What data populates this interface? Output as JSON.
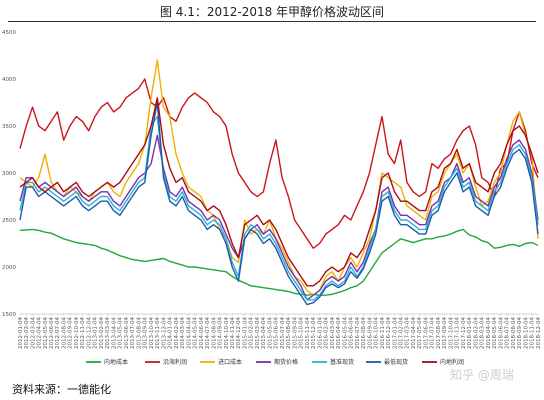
{
  "header": {
    "title": "图 4.1：2012-2018 年甲醇价格波动区间"
  },
  "footer": {
    "source": "资料来源：一德能化",
    "watermark": "知乎 @周瑞"
  },
  "chart_data": {
    "type": "line",
    "title": "图 4.1：2012-2018 年甲醇价格波动区间",
    "ylim": [
      1500,
      4500
    ],
    "yticks": [
      1500,
      2000,
      2500,
      3000,
      3500,
      4000,
      4500
    ],
    "grid": false,
    "legend_position": "bottom",
    "x": [
      "2012-01-04",
      "2012-02-04",
      "2012-03-04",
      "2012-04-04",
      "2012-05-04",
      "2012-06-04",
      "2012-07-04",
      "2012-08-04",
      "2012-09-04",
      "2012-10-04",
      "2012-11-04",
      "2012-12-04",
      "2013-01-04",
      "2013-02-04",
      "2013-03-04",
      "2013-04-04",
      "2013-05-04",
      "2013-06-04",
      "2013-07-04",
      "2013-08-04",
      "2013-09-04",
      "2013-10-04",
      "2013-11-04",
      "2013-12-04",
      "2014-01-04",
      "2014-02-04",
      "2014-03-04",
      "2014-04-04",
      "2014-05-04",
      "2014-06-04",
      "2014-07-04",
      "2014-08-04",
      "2014-09-04",
      "2014-10-04",
      "2014-11-04",
      "2014-12-04",
      "2015-01-04",
      "2015-02-04",
      "2015-03-04",
      "2015-04-04",
      "2015-05-04",
      "2015-06-04",
      "2015-07-04",
      "2015-08-04",
      "2015-09-04",
      "2015-10-04",
      "2015-11-04",
      "2015-12-04",
      "2016-01-04",
      "2016-02-04",
      "2016-03-04",
      "2016-04-04",
      "2016-05-04",
      "2016-06-04",
      "2016-07-04",
      "2016-08-04",
      "2016-09-04",
      "2016-10-04",
      "2016-11-04",
      "2016-12-04",
      "2017-01-04",
      "2017-02-04",
      "2017-03-04",
      "2017-04-04",
      "2017-05-04",
      "2017-06-04",
      "2017-07-04",
      "2017-08-04",
      "2017-09-04",
      "2017-10-04",
      "2017-11-04",
      "2017-12-04",
      "2018-01-04",
      "2018-02-04",
      "2018-03-04",
      "2018-04-04",
      "2018-05-04",
      "2018-06-04",
      "2018-07-04",
      "2018-08-04",
      "2018-09-04",
      "2018-10-04",
      "2018-11-04",
      "2018-12-04"
    ],
    "series": [
      {
        "name": "内地成本",
        "color": "#22a838",
        "values": [
          2390,
          2395,
          2400,
          2390,
          2370,
          2360,
          2330,
          2300,
          2280,
          2260,
          2250,
          2240,
          2230,
          2200,
          2180,
          2150,
          2120,
          2100,
          2080,
          2070,
          2060,
          2070,
          2080,
          2090,
          2060,
          2040,
          2020,
          2000,
          2000,
          1990,
          1980,
          1970,
          1960,
          1950,
          1900,
          1860,
          1830,
          1800,
          1790,
          1780,
          1770,
          1760,
          1750,
          1740,
          1720,
          1710,
          1700,
          1710,
          1700,
          1700,
          1710,
          1730,
          1750,
          1780,
          1800,
          1850,
          1950,
          2050,
          2150,
          2200,
          2250,
          2300,
          2280,
          2260,
          2280,
          2300,
          2300,
          2320,
          2330,
          2350,
          2380,
          2400,
          2340,
          2320,
          2280,
          2260,
          2200,
          2210,
          2230,
          2240,
          2220,
          2250,
          2260,
          2230
        ]
      },
      {
        "name": "沿海利润",
        "color": "#cc1418",
        "values": [
          3260,
          3500,
          3700,
          3500,
          3450,
          3550,
          3650,
          3350,
          3500,
          3600,
          3550,
          3450,
          3600,
          3700,
          3750,
          3650,
          3700,
          3800,
          3850,
          3900,
          4000,
          3750,
          3700,
          3800,
          3600,
          3550,
          3700,
          3800,
          3850,
          3800,
          3750,
          3650,
          3600,
          3500,
          3200,
          3000,
          2900,
          2800,
          2750,
          2800,
          3100,
          3350,
          2950,
          2750,
          2500,
          2400,
          2300,
          2200,
          2250,
          2350,
          2400,
          2450,
          2550,
          2500,
          2650,
          2800,
          3000,
          3300,
          3600,
          3200,
          3100,
          3350,
          2900,
          2800,
          2750,
          2800,
          3100,
          3050,
          3150,
          3200,
          3350,
          3450,
          3500,
          3300,
          2950,
          2900,
          2750,
          3050,
          3100,
          3450,
          3650,
          3450,
          3100,
          2950
        ]
      },
      {
        "name": "进口成本",
        "color": "#f0b000",
        "values": [
          2950,
          2900,
          2850,
          2950,
          3200,
          2900,
          2800,
          2750,
          2850,
          2800,
          2750,
          2700,
          2800,
          2850,
          2900,
          2800,
          2750,
          2900,
          3000,
          3100,
          3300,
          3800,
          4200,
          3700,
          3600,
          3200,
          3000,
          2850,
          2800,
          2750,
          2600,
          2550,
          2400,
          2300,
          2100,
          2050,
          2500,
          2350,
          2400,
          2350,
          2500,
          2300,
          2200,
          2050,
          1900,
          1850,
          1750,
          1700,
          1750,
          1900,
          1950,
          1850,
          2000,
          2100,
          2000,
          2150,
          2300,
          2600,
          3000,
          2950,
          2900,
          2850,
          2650,
          2600,
          2550,
          2500,
          2750,
          2800,
          3000,
          3100,
          3200,
          3000,
          3100,
          2850,
          2650,
          2700,
          2900,
          3000,
          3300,
          3550,
          3650,
          3400,
          3200,
          2300
        ]
      },
      {
        "name": "期货价格",
        "color": "#7a2fb0",
        "values": [
          2700,
          2950,
          2950,
          2850,
          2900,
          2850,
          2800,
          2750,
          2800,
          2850,
          2750,
          2700,
          2750,
          2800,
          2800,
          2700,
          2650,
          2750,
          2850,
          2950,
          3000,
          3100,
          3400,
          3050,
          2800,
          2750,
          2850,
          2700,
          2650,
          2600,
          2500,
          2550,
          2500,
          2350,
          2200,
          2100,
          2300,
          2400,
          2450,
          2350,
          2400,
          2300,
          2150,
          2000,
          1900,
          1800,
          1650,
          1700,
          1750,
          1850,
          1900,
          1850,
          1900,
          2050,
          1950,
          2050,
          2250,
          2400,
          2800,
          2850,
          2650,
          2550,
          2550,
          2500,
          2450,
          2450,
          2650,
          2700,
          2900,
          2950,
          3100,
          2900,
          2950,
          2750,
          2700,
          2650,
          2850,
          2950,
          3150,
          3300,
          3350,
          3250,
          3000,
          2500
        ]
      },
      {
        "name": "基准现货",
        "color": "#2ab0d8",
        "values": [
          2600,
          2900,
          2900,
          2800,
          2850,
          2800,
          2750,
          2700,
          2750,
          2800,
          2700,
          2650,
          2700,
          2750,
          2750,
          2650,
          2600,
          2700,
          2800,
          2900,
          2950,
          3500,
          3600,
          3000,
          2750,
          2700,
          2800,
          2650,
          2600,
          2550,
          2450,
          2500,
          2450,
          2300,
          2050,
          1900,
          2350,
          2450,
          2400,
          2300,
          2350,
          2250,
          2100,
          1950,
          1850,
          1750,
          1650,
          1650,
          1700,
          1800,
          1850,
          1800,
          1850,
          2000,
          1900,
          2000,
          2200,
          2400,
          2750,
          2800,
          2600,
          2500,
          2500,
          2450,
          2400,
          2400,
          2600,
          2650,
          2850,
          2950,
          3050,
          2850,
          2900,
          2700,
          2650,
          2600,
          2800,
          2900,
          3100,
          3250,
          3300,
          3200,
          2950,
          2450
        ]
      },
      {
        "name": "最低现货",
        "color": "#1e5aa8",
        "values": [
          2500,
          2850,
          2850,
          2750,
          2800,
          2750,
          2700,
          2650,
          2700,
          2750,
          2650,
          2600,
          2650,
          2700,
          2700,
          2600,
          2550,
          2650,
          2750,
          2850,
          2900,
          3400,
          3750,
          2950,
          2700,
          2650,
          2750,
          2600,
          2550,
          2500,
          2400,
          2450,
          2400,
          2250,
          2000,
          1850,
          2300,
          2400,
          2350,
          2250,
          2300,
          2200,
          2050,
          1900,
          1800,
          1700,
          1600,
          1620,
          1680,
          1780,
          1820,
          1780,
          1820,
          1950,
          1880,
          1980,
          2150,
          2350,
          2700,
          2750,
          2550,
          2450,
          2450,
          2400,
          2350,
          2350,
          2550,
          2600,
          2800,
          2900,
          3000,
          2800,
          2850,
          2650,
          2600,
          2550,
          2750,
          2850,
          3050,
          3200,
          3250,
          3150,
          2900,
          2350
        ]
      },
      {
        "name": "内地利润",
        "color": "#a80c10",
        "values": [
          2850,
          2900,
          2950,
          2850,
          2800,
          2850,
          2900,
          2800,
          2850,
          2900,
          2800,
          2750,
          2800,
          2850,
          2900,
          2850,
          2900,
          3000,
          3100,
          3200,
          3300,
          3500,
          3800,
          3300,
          3050,
          2900,
          2950,
          2800,
          2750,
          2700,
          2600,
          2650,
          2600,
          2450,
          2250,
          2100,
          2450,
          2500,
          2550,
          2450,
          2500,
          2400,
          2250,
          2100,
          2000,
          1900,
          1800,
          1800,
          1850,
          1950,
          2000,
          1950,
          2000,
          2150,
          2100,
          2200,
          2400,
          2600,
          2950,
          3000,
          2800,
          2700,
          2700,
          2650,
          2600,
          2600,
          2800,
          2850,
          3050,
          3100,
          3250,
          3050,
          3100,
          2900,
          2850,
          2800,
          3000,
          3100,
          3300,
          3450,
          3500,
          3400,
          3200,
          3000
        ]
      }
    ]
  }
}
